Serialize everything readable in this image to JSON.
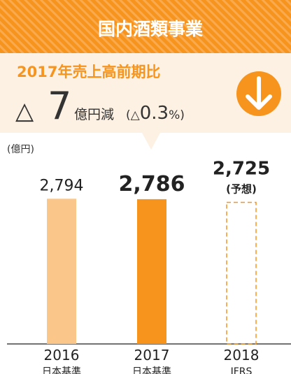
{
  "chart_data": {
    "type": "bar",
    "title": "国内酒類事業",
    "subtitle": "2017年売上高前期比",
    "change_symbol": "△",
    "change_value": 7,
    "change_unit": "億円減",
    "percent_prefix": "(△",
    "percent_value": 0.3,
    "percent_suffix": "%)",
    "y_label": "(億円)",
    "categories": [
      "2016",
      "2017",
      "2018"
    ],
    "category_notes": [
      "日本基準",
      "日本基準",
      "IFRS"
    ],
    "values": [
      2794,
      2786,
      2725
    ],
    "value_labels": [
      "2,794",
      "2,786",
      "2,725"
    ],
    "annotations": [
      null,
      null,
      "(予想)"
    ],
    "colors": [
      "#fbc68a",
      "#f7941d",
      "#f7941d"
    ],
    "styles": [
      "solid",
      "solid",
      "dashed"
    ],
    "ylim": [
      0,
      3000
    ]
  }
}
